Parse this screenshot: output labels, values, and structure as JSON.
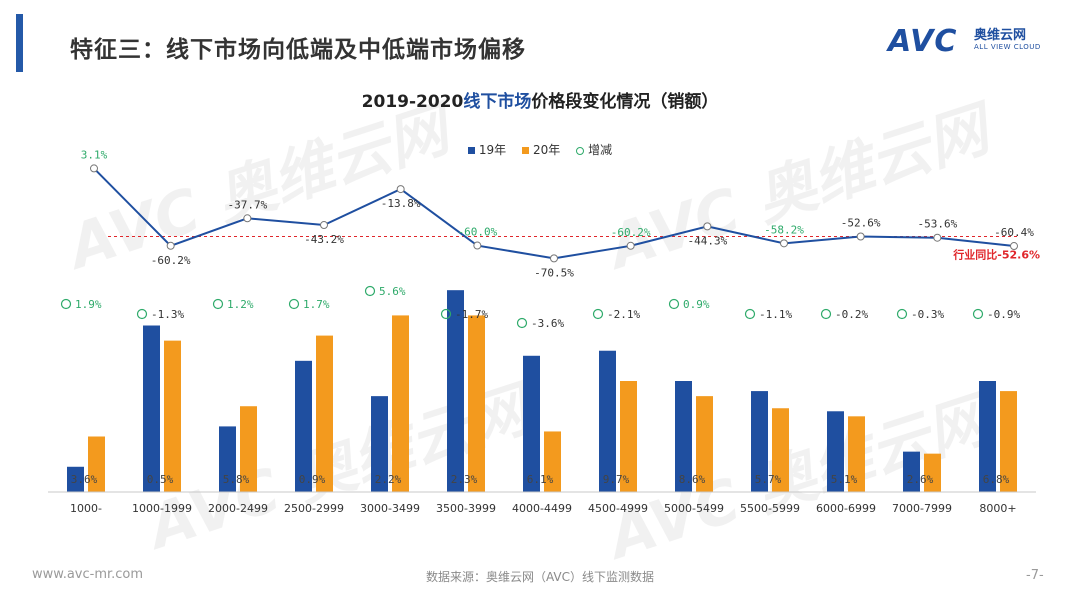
{
  "header": {
    "title": "特征三：线下市场向低端及中低端市场偏移",
    "logo_text": "AVC",
    "logo_cn": "奥维云网",
    "logo_en": "ALL VIEW CLOUD"
  },
  "watermark": {
    "text": "AVC 奥维云网",
    "subtext": "ALL VIEW CLOUD"
  },
  "chart_data": {
    "type": "bar",
    "title_prefix": "2019-2020",
    "title_highlight": "线下市场",
    "title_suffix": "价格段变化情况（销额）",
    "categories": [
      "1000-",
      "1000-1999",
      "2000-2499",
      "2500-2999",
      "3000-3499",
      "3500-3999",
      "4000-4499",
      "4500-4999",
      "5000-5499",
      "5500-5999",
      "6000-6999",
      "7000-7999",
      "8000+"
    ],
    "series": [
      {
        "name": "19年",
        "color": "#1f4fa0",
        "values": [
          2.5,
          16.5,
          6.5,
          13.0,
          9.5,
          20.0,
          13.5,
          14.0,
          11.0,
          10.0,
          8.0,
          4.0,
          11.0
        ]
      },
      {
        "name": "20年",
        "color": "#f39a1e",
        "values": [
          5.5,
          15.0,
          8.5,
          15.5,
          17.5,
          17.5,
          6.0,
          11.0,
          9.5,
          8.3,
          7.5,
          3.8,
          10.0
        ]
      }
    ],
    "bar_labels": [
      "3.6%",
      "0.5%",
      "5.8%",
      "0.9%",
      "2.2%",
      "2.3%",
      "6.1%",
      "9.7%",
      "8.6%",
      "5.7%",
      "5.1%",
      "2.6%",
      "6.8%"
    ],
    "share_change": {
      "name": "增减",
      "values": [
        1.9,
        -1.3,
        1.2,
        1.7,
        5.6,
        -1.7,
        -3.6,
        -2.1,
        0.9,
        -1.1,
        -0.2,
        -0.3,
        -0.9
      ],
      "labels": [
        "1.9%",
        "-1.3%",
        "1.2%",
        "1.7%",
        "5.6%",
        "-1.7%",
        "-3.6%",
        "-2.1%",
        "0.9%",
        "-1.1%",
        "-0.2%",
        "-0.3%",
        "-0.9%"
      ]
    },
    "yoy_line": {
      "values": [
        3.1,
        -60.2,
        -37.7,
        -43.2,
        -13.8,
        -60.0,
        -70.5,
        -60.2,
        -44.3,
        -58.2,
        -52.6,
        -53.6,
        -60.4
      ],
      "labels": [
        "3.1%",
        "-60.2%",
        "-37.7%",
        "-43.2%",
        "-13.8%",
        "-60.0%",
        "-70.5%",
        "-60.2%",
        "-44.3%",
        "-58.2%",
        "-52.6%",
        "-53.6%",
        "-60.4%"
      ],
      "label_colors": [
        "#2eaa6a",
        "#333333",
        "#333333",
        "#333333",
        "#333333",
        "#2eaa6a",
        "#333333",
        "#2eaa6a",
        "#333333",
        "#2eaa6a",
        "#333333",
        "#333333",
        "#333333"
      ],
      "label_side": [
        "above",
        "below",
        "above",
        "below",
        "below",
        "above",
        "below",
        "above",
        "below",
        "above",
        "above",
        "above",
        "above"
      ],
      "color": "#1f4fa0",
      "range": [
        -80,
        10
      ],
      "industry_value": -52.6,
      "industry_label": "行业同比-52.6%",
      "industry_color": "#e0262b"
    },
    "ylim": [
      0,
      22
    ]
  },
  "footer": {
    "url": "www.avc-mr.com",
    "source": "数据来源：奥维云网（AVC）线下监测数据",
    "page": "-7-"
  }
}
